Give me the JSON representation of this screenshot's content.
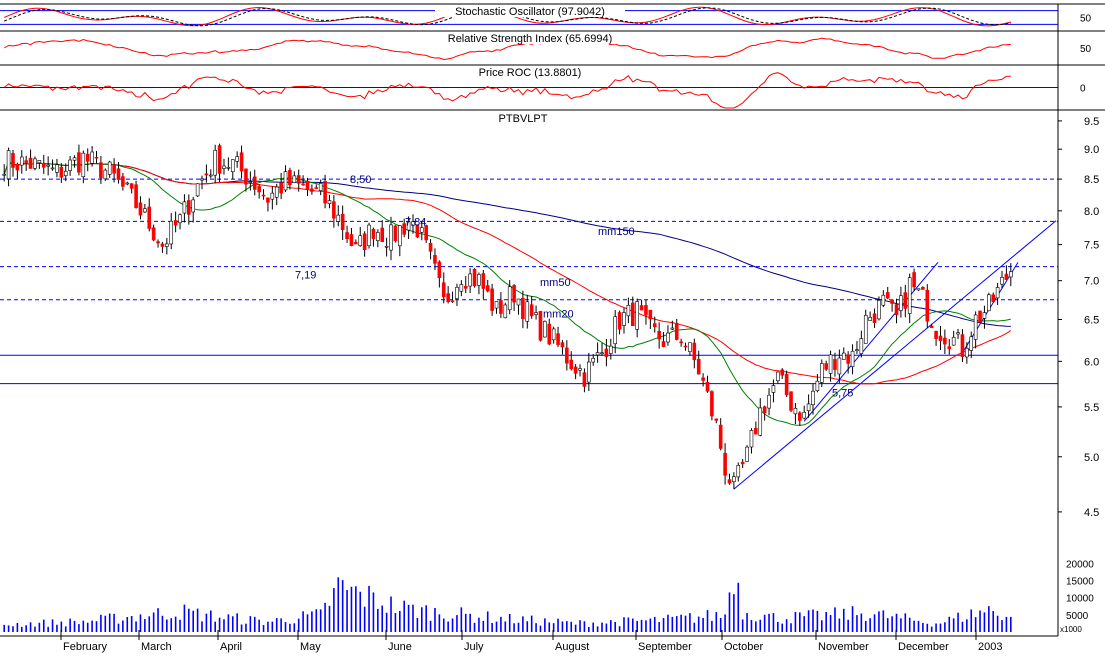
{
  "chart_data": {
    "type": "candlestick",
    "title": "PTBVLPT",
    "colors": {
      "up": "#ffffff",
      "down": "#ff0000",
      "wick": "#000000",
      "mm20": "#008000",
      "mm50": "#ff0000",
      "mm150": "#000080",
      "volume": "#0000ff",
      "guide": "#0000ff",
      "indicator": "#ff0000",
      "signal": "#000000",
      "text": "#000080"
    },
    "x_labels": [
      "February",
      "March",
      "April",
      "May",
      "June",
      "July",
      "August",
      "September",
      "October",
      "November",
      "December",
      "2003"
    ],
    "price_axis": {
      "ticks": [
        "9.5",
        "9.0",
        "8.5",
        "8.0",
        "7.5",
        "7.0",
        "6.5",
        "6.0",
        "5.5",
        "5.0",
        "4.5"
      ],
      "scale": "log",
      "ylim": [
        4.2,
        9.7
      ]
    },
    "volume_axis": {
      "ticks": [
        "20000",
        "15000",
        "10000",
        "5000"
      ],
      "unit_label": "x1000",
      "ylim": [
        0,
        21000
      ]
    },
    "panels": [
      {
        "name": "Stochastic Oscillator (97.9042)",
        "ticks": [
          "50"
        ],
        "range": [
          0,
          100
        ],
        "reference_levels": [
          20,
          80
        ]
      },
      {
        "name": "Relative Strength Index (65.6994)",
        "ticks": [
          "50"
        ],
        "range": [
          0,
          100
        ]
      },
      {
        "name": "Price ROC (13.8801)",
        "ticks": [
          "0"
        ],
        "range": [
          -25,
          25
        ],
        "reference_levels": [
          0
        ]
      }
    ],
    "annotations": [
      {
        "text": "8,50",
        "value": 8.5
      },
      {
        "text": "7,84",
        "value": 7.84
      },
      {
        "text": "7,19",
        "value": 7.19
      },
      {
        "text": "mm150"
      },
      {
        "text": "mm50"
      },
      {
        "text": "mm20"
      },
      {
        "text": "5,75",
        "value": 5.75
      }
    ],
    "horizontal_levels": [
      {
        "value": 8.5,
        "style": "dashed"
      },
      {
        "value": 7.84,
        "style": "dashed"
      },
      {
        "value": 7.19,
        "style": "dashed"
      },
      {
        "value": 6.75,
        "style": "dashed"
      },
      {
        "value": 6.07,
        "style": "solid"
      },
      {
        "value": 5.75,
        "style": "solid"
      }
    ],
    "close_path": [
      [
        0,
        8.8
      ],
      [
        6,
        8.75
      ],
      [
        12,
        8.6
      ],
      [
        18,
        8.85
      ],
      [
        24,
        8.6
      ],
      [
        30,
        8.1
      ],
      [
        36,
        7.5
      ],
      [
        40,
        7.85
      ],
      [
        44,
        8.4
      ],
      [
        48,
        8.8
      ],
      [
        52,
        8.75
      ],
      [
        56,
        8.5
      ],
      [
        60,
        8.2
      ],
      [
        64,
        8.45
      ],
      [
        68,
        8.35
      ],
      [
        72,
        8.25
      ],
      [
        76,
        7.9
      ],
      [
        80,
        7.4
      ],
      [
        84,
        7.75
      ],
      [
        88,
        7.6
      ],
      [
        92,
        7.85
      ],
      [
        94,
        7.75
      ],
      [
        98,
        7.1
      ],
      [
        100,
        6.7
      ],
      [
        104,
        7.1
      ],
      [
        108,
        7.0
      ],
      [
        112,
        6.6
      ],
      [
        116,
        6.85
      ],
      [
        120,
        6.5
      ],
      [
        124,
        6.3
      ],
      [
        128,
        6.05
      ],
      [
        132,
        5.85
      ],
      [
        136,
        6.1
      ],
      [
        140,
        6.5
      ],
      [
        144,
        6.6
      ],
      [
        146,
        6.4
      ],
      [
        150,
        6.25
      ],
      [
        154,
        6.3
      ],
      [
        158,
        5.9
      ],
      [
        162,
        5.3
      ],
      [
        164,
        4.9
      ],
      [
        166,
        4.7
      ],
      [
        169,
        5.0
      ],
      [
        172,
        5.45
      ],
      [
        176,
        5.8
      ],
      [
        179,
        5.55
      ],
      [
        182,
        5.4
      ],
      [
        186,
        5.9
      ],
      [
        190,
        6.1
      ],
      [
        193,
        6.05
      ],
      [
        196,
        6.5
      ],
      [
        200,
        6.7
      ],
      [
        203,
        6.5
      ],
      [
        206,
        6.95
      ],
      [
        209,
        6.75
      ],
      [
        212,
        6.4
      ],
      [
        215,
        6.3
      ],
      [
        218,
        6.15
      ],
      [
        221,
        6.5
      ],
      [
        224,
        6.65
      ],
      [
        227,
        6.95
      ],
      [
        230,
        7.25
      ]
    ],
    "volume_profile": [
      [
        0,
        2200
      ],
      [
        18,
        3000
      ],
      [
        40,
        6000
      ],
      [
        48,
        4500
      ],
      [
        60,
        3000
      ],
      [
        72,
        5000
      ],
      [
        76,
        13000
      ],
      [
        90,
        7000
      ],
      [
        100,
        5500
      ],
      [
        112,
        4000
      ],
      [
        130,
        2500
      ],
      [
        150,
        3500
      ],
      [
        164,
        5000
      ],
      [
        166,
        19000
      ],
      [
        168,
        6000
      ],
      [
        176,
        4000
      ],
      [
        196,
        5500
      ],
      [
        212,
        2500
      ],
      [
        224,
        6500
      ],
      [
        230,
        4000
      ]
    ]
  }
}
